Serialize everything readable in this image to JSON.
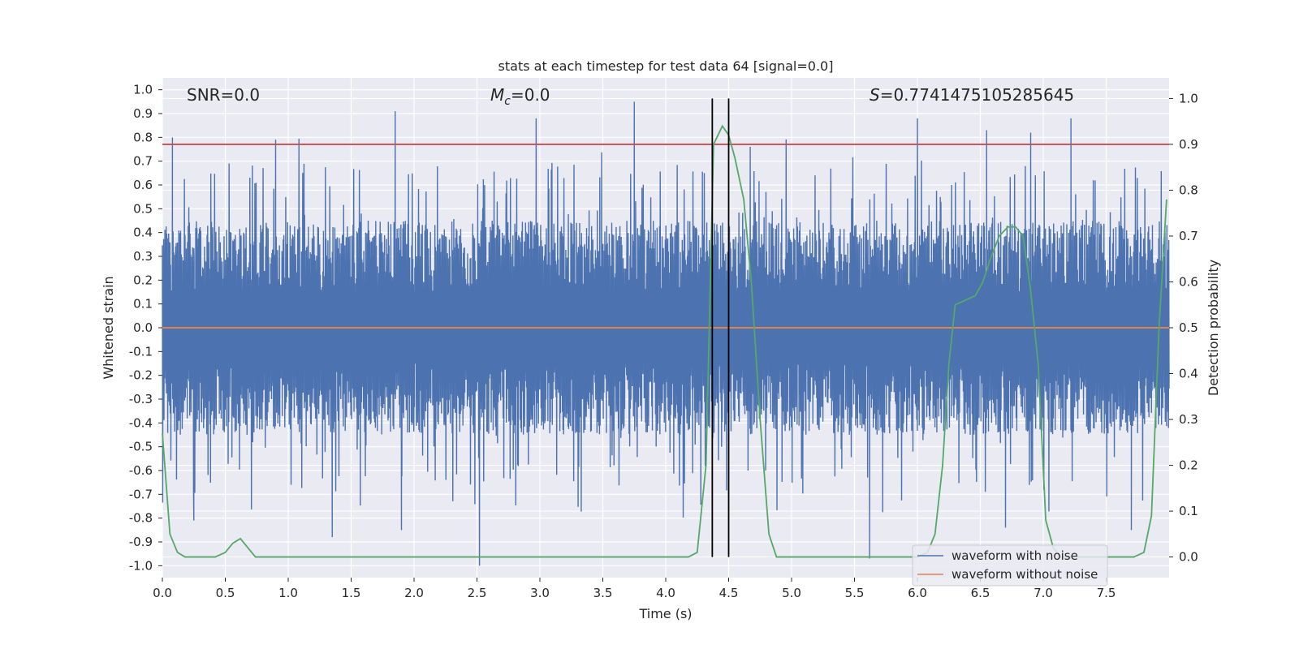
{
  "chart_data": {
    "type": "line",
    "title": "stats at each timestep for test data 64 [signal=0.0]",
    "xlabel": "Time (s)",
    "ylabel": "Whitened strain",
    "y2label": "Detection probability",
    "xlim": [
      0.0,
      8.0
    ],
    "ylim": [
      -1.05,
      1.05
    ],
    "y2lim": [
      -0.045,
      1.045
    ],
    "xticks": [
      "0.0",
      "0.5",
      "1.0",
      "1.5",
      "2.0",
      "2.5",
      "3.0",
      "3.5",
      "4.0",
      "4.5",
      "5.0",
      "5.5",
      "6.0",
      "6.5",
      "7.0",
      "7.5"
    ],
    "xtick_values": [
      0,
      0.5,
      1,
      1.5,
      2,
      2.5,
      3,
      3.5,
      4,
      4.5,
      5,
      5.5,
      6,
      6.5,
      7,
      7.5
    ],
    "yticks": [
      "1.0",
      "0.9",
      "0.8",
      "0.7",
      "0.6",
      "0.5",
      "0.4",
      "0.3",
      "0.2",
      "0.1",
      "0.0",
      "-0.1",
      "-0.2",
      "-0.3",
      "-0.4",
      "-0.5",
      "-0.6",
      "-0.7",
      "-0.8",
      "-0.9",
      "-1.0"
    ],
    "ytick_values": [
      1,
      0.9,
      0.8,
      0.7,
      0.6,
      0.5,
      0.4,
      0.3,
      0.2,
      0.1,
      0,
      -0.1,
      -0.2,
      -0.3,
      -0.4,
      -0.5,
      -0.6,
      -0.7,
      -0.8,
      -0.9,
      -1.0
    ],
    "y2ticks": [
      "1.0",
      "0.9",
      "0.8",
      "0.7",
      "0.6",
      "0.5",
      "0.4",
      "0.3",
      "0.2",
      "0.1",
      "0.0"
    ],
    "y2tick_values": [
      1.0,
      0.9,
      0.8,
      0.7,
      0.6,
      0.5,
      0.4,
      0.3,
      0.2,
      0.1,
      0.0
    ],
    "annotations": {
      "snr": "SNR=0.0",
      "mc_symbol": "M",
      "mc_sub": "c",
      "mc_value": "=0.0",
      "s_symbol": "S",
      "s_value": "=0.7741475105285645"
    },
    "series": [
      {
        "name": "waveform with noise",
        "color": "#4c72b0",
        "style": "dense noise, roughly uniform amplitude",
        "envelope": {
          "typical_max": 0.45,
          "typical_min": -0.45
        },
        "peaks": [
          [
            0.08,
            0.8
          ],
          [
            0.9,
            0.79
          ],
          [
            1.85,
            0.91
          ],
          [
            2.97,
            0.88
          ],
          [
            3.75,
            0.95
          ],
          [
            6.0,
            0.88
          ],
          [
            7.22,
            0.88
          ],
          [
            6.55,
            0.83
          ],
          [
            6.9,
            0.82
          ]
        ],
        "troughs": [
          [
            2.52,
            -1.0
          ],
          [
            5.62,
            -0.97
          ],
          [
            1.35,
            -0.88
          ],
          [
            7.7,
            -0.85
          ],
          [
            6.7,
            -0.84
          ],
          [
            1.9,
            -0.85
          ],
          [
            0.25,
            -0.81
          ]
        ]
      },
      {
        "name": "waveform without noise",
        "color": "#dd8452",
        "x": [
          0.0,
          8.0
        ],
        "y": [
          0.0,
          0.0
        ]
      },
      {
        "name": "detection probability",
        "axis": "right",
        "color": "#55a868",
        "x": [
          0.0,
          0.06,
          0.12,
          0.18,
          0.3,
          0.42,
          0.5,
          0.56,
          0.62,
          0.68,
          0.74,
          0.8,
          1.0,
          2.0,
          3.0,
          4.0,
          4.18,
          4.25,
          4.32,
          4.38,
          4.45,
          4.5,
          4.55,
          4.62,
          4.68,
          4.75,
          4.82,
          4.88,
          4.95,
          5.0,
          5.5,
          6.0,
          6.08,
          6.14,
          6.2,
          6.25,
          6.3,
          6.38,
          6.46,
          6.52,
          6.58,
          6.65,
          6.72,
          6.78,
          6.84,
          6.9,
          6.96,
          7.02,
          7.08,
          7.14,
          7.2,
          7.4,
          7.6,
          7.72,
          7.8,
          7.86,
          7.92,
          7.98
        ],
        "y": [
          0.27,
          0.05,
          0.01,
          0.0,
          0.0,
          0.0,
          0.01,
          0.03,
          0.04,
          0.02,
          0.0,
          0.0,
          0.0,
          0.0,
          0.0,
          0.0,
          0.0,
          0.01,
          0.2,
          0.9,
          0.94,
          0.92,
          0.87,
          0.78,
          0.6,
          0.3,
          0.05,
          0.0,
          0.0,
          0.0,
          0.0,
          0.0,
          0.01,
          0.05,
          0.2,
          0.42,
          0.55,
          0.56,
          0.57,
          0.6,
          0.65,
          0.7,
          0.72,
          0.72,
          0.7,
          0.58,
          0.42,
          0.08,
          0.02,
          0.0,
          0.0,
          0.0,
          0.0,
          0.0,
          0.01,
          0.09,
          0.5,
          0.78
        ]
      }
    ],
    "threshold_line": {
      "y2": 0.9,
      "color": "#c44e52"
    },
    "vertical_lines": [
      {
        "x": 4.37,
        "color": "#000000"
      },
      {
        "x": 4.5,
        "color": "#000000"
      }
    ],
    "legend": {
      "placement": "bottom-right",
      "entries": [
        "waveform with noise",
        "waveform without noise"
      ]
    }
  }
}
